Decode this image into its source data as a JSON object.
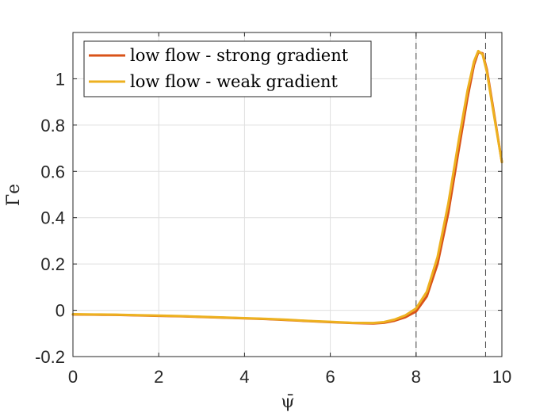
{
  "chart_data": {
    "type": "line",
    "title": "",
    "xlabel": "ψ̄",
    "ylabel": "Γ̄e",
    "xlim": [
      0,
      10
    ],
    "ylim": [
      -0.2,
      1.2
    ],
    "xticks": [
      0,
      2,
      4,
      6,
      8,
      10
    ],
    "xtick_labels": [
      "0",
      "2",
      "4",
      "6",
      "8",
      "10"
    ],
    "yticks": [
      -0.2,
      0,
      0.2,
      0.4,
      0.6,
      0.8,
      1
    ],
    "ytick_labels": [
      "-0.2",
      "0",
      "0.2",
      "0.4",
      "0.6",
      "0.8",
      "1"
    ],
    "grid": true,
    "legend_position": "top-left",
    "vertical_lines": [
      8.0,
      9.62
    ],
    "vertical_line_style": "dashed",
    "series": [
      {
        "name": "low flow - strong gradient",
        "color": "#D95319",
        "x": [
          0,
          0.5,
          1,
          1.5,
          2,
          2.5,
          3,
          3.5,
          4,
          4.5,
          5,
          5.5,
          6,
          6.5,
          7,
          7.25,
          7.5,
          7.75,
          8,
          8.25,
          8.5,
          8.75,
          9,
          9.2,
          9.35,
          9.45,
          9.55,
          9.65,
          9.8,
          10
        ],
        "y": [
          -0.018,
          -0.019,
          -0.02,
          -0.022,
          -0.024,
          -0.026,
          -0.029,
          -0.032,
          -0.035,
          -0.038,
          -0.042,
          -0.047,
          -0.051,
          -0.055,
          -0.057,
          -0.054,
          -0.045,
          -0.03,
          -0.005,
          0.06,
          0.2,
          0.42,
          0.7,
          0.92,
          1.06,
          1.115,
          1.11,
          1.04,
          0.87,
          0.64
        ]
      },
      {
        "name": "low flow - weak gradient",
        "color": "#EDB120",
        "x": [
          0,
          0.5,
          1,
          1.5,
          2,
          2.5,
          3,
          3.5,
          4,
          4.5,
          5,
          5.5,
          6,
          6.5,
          7,
          7.25,
          7.5,
          7.75,
          8,
          8.25,
          8.5,
          8.75,
          9,
          9.2,
          9.35,
          9.45,
          9.55,
          9.65,
          9.8,
          10
        ],
        "y": [
          -0.017,
          -0.018,
          -0.019,
          -0.021,
          -0.023,
          -0.025,
          -0.028,
          -0.031,
          -0.034,
          -0.037,
          -0.041,
          -0.046,
          -0.05,
          -0.054,
          -0.055,
          -0.051,
          -0.04,
          -0.022,
          0.008,
          0.08,
          0.23,
          0.46,
          0.74,
          0.95,
          1.075,
          1.12,
          1.105,
          1.03,
          0.86,
          0.64
        ]
      }
    ]
  }
}
